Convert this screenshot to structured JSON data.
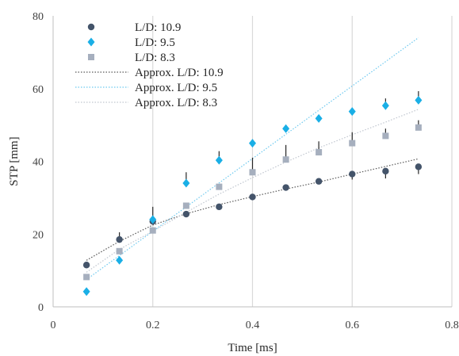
{
  "chart_data": {
    "type": "scatter",
    "xlabel": "Time [ms]",
    "ylabel": "STP [mm]",
    "xlim": [
      0,
      0.8
    ],
    "ylim": [
      0,
      80
    ],
    "x_ticks": [
      "0",
      "0.2",
      "0.4",
      "0.6",
      "0.8"
    ],
    "y_ticks": [
      "0",
      "20",
      "40",
      "60",
      "80"
    ],
    "grid": "vertical",
    "legend_position": "top-left",
    "series": [
      {
        "name": "L/D: 10.9",
        "marker": "circle",
        "color": "#44546A",
        "x": [
          0.067,
          0.133,
          0.2,
          0.267,
          0.333,
          0.4,
          0.467,
          0.533,
          0.6,
          0.667,
          0.733
        ],
        "y": [
          11.5,
          18.5,
          23.5,
          25.5,
          27.5,
          30.2,
          32.8,
          34.5,
          36.5,
          37.3,
          38.5
        ],
        "error_upper": [
          0,
          2,
          4,
          0,
          0,
          0,
          0,
          0,
          0,
          0,
          0
        ],
        "error_lower": [
          0,
          0,
          0,
          0,
          0,
          0,
          0,
          0,
          1.5,
          2,
          2
        ]
      },
      {
        "name": "L/D: 9.5",
        "marker": "diamond",
        "color": "#1AAFE6",
        "x": [
          0.067,
          0.133,
          0.2,
          0.267,
          0.333,
          0.4,
          0.467,
          0.533,
          0.6,
          0.667,
          0.733
        ],
        "y": [
          4.2,
          12.8,
          24.0,
          34.0,
          40.3,
          45.0,
          49.0,
          51.8,
          53.7,
          55.3,
          56.8
        ],
        "error_upper": [
          0,
          0,
          0,
          3,
          2.5,
          0,
          0,
          0,
          0,
          2,
          2.5
        ],
        "error_lower": [
          0,
          0,
          0,
          0,
          0,
          0,
          0,
          0,
          0,
          0,
          0
        ]
      },
      {
        "name": "L/D: 8.3",
        "marker": "square",
        "color": "#A6AFBE",
        "x": [
          0.067,
          0.133,
          0.2,
          0.267,
          0.333,
          0.4,
          0.467,
          0.533,
          0.6,
          0.667,
          0.733
        ],
        "y": [
          8.2,
          15.3,
          21.0,
          27.8,
          33.0,
          37.0,
          40.5,
          42.5,
          45.0,
          47.0,
          49.3
        ],
        "error_upper": [
          0,
          0,
          0,
          0,
          0,
          4,
          4,
          3,
          3,
          2,
          2
        ],
        "error_lower": [
          0,
          0,
          0,
          0,
          0,
          0,
          0,
          0,
          0,
          0,
          0
        ]
      }
    ],
    "trendlines": [
      {
        "name": "Approx. L/D: 10.9",
        "color": "#595959",
        "x": [
          0.067,
          0.133,
          0.2,
          0.267,
          0.333,
          0.4,
          0.467,
          0.533,
          0.6,
          0.667,
          0.733
        ],
        "y": [
          12.8,
          18.0,
          22.5,
          25.6,
          28.1,
          30.3,
          32.4,
          34.3,
          36.5,
          38.6,
          40.7
        ]
      },
      {
        "name": "Approx. L/D: 9.5",
        "color": "#6DC9EF",
        "x": [
          0.067,
          0.733
        ],
        "y": [
          7.5,
          74.0
        ]
      },
      {
        "name": "Approx. L/D: 8.3",
        "color": "#C0C6CF",
        "x": [
          0.067,
          0.133,
          0.2,
          0.267,
          0.333,
          0.4,
          0.467,
          0.533,
          0.6,
          0.667,
          0.733
        ],
        "y": [
          9.5,
          15.8,
          20.8,
          26.0,
          31.0,
          35.5,
          39.8,
          43.7,
          47.3,
          50.8,
          54.3
        ]
      }
    ]
  }
}
